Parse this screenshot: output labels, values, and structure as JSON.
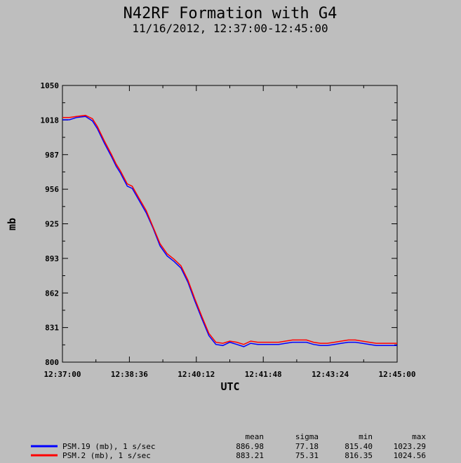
{
  "chart_data": {
    "type": "line",
    "title": "N42RF Formation with G4",
    "subtitle": "11/16/2012, 12:37:00-12:45:00",
    "xlabel": "UTC",
    "ylabel": "mb",
    "xlim_seconds": [
      0,
      480
    ],
    "ylim": [
      800,
      1050
    ],
    "xticks": [
      "12:37:00",
      "12:38:36",
      "12:40:12",
      "12:41:48",
      "12:43:24",
      "12:45:00"
    ],
    "yticks": [
      "1050",
      "1018",
      "987",
      "956",
      "925",
      "893",
      "862",
      "831",
      "800"
    ],
    "grid": false,
    "stats_headers": [
      "mean",
      "sigma",
      "min",
      "max"
    ],
    "series": [
      {
        "name": "PSM.19 (mb), 1 s/sec",
        "color": "#0000ff",
        "stats": [
          "886.98",
          "77.18",
          "815.40",
          "1023.29"
        ],
        "x": [
          0,
          10,
          20,
          33,
          43,
          50,
          60,
          70,
          77,
          83,
          88,
          93,
          100,
          110,
          120,
          130,
          140,
          150,
          160,
          170,
          180,
          190,
          200,
          210,
          220,
          230,
          240,
          250,
          260,
          270,
          280,
          290,
          300,
          310,
          320,
          330,
          340,
          350,
          360,
          370,
          380,
          390,
          400,
          410,
          420,
          430,
          440,
          450,
          460,
          470,
          480
        ],
        "values": [
          1019,
          1019,
          1021,
          1022,
          1018,
          1011,
          998,
          986,
          977,
          971,
          965,
          959,
          957,
          946,
          935,
          921,
          905,
          896,
          891,
          885,
          872,
          855,
          839,
          824,
          816,
          815,
          818,
          816,
          814,
          817,
          816,
          816,
          816,
          816,
          817,
          818,
          818,
          818,
          816,
          815,
          815,
          816,
          817,
          818,
          818,
          817,
          816,
          815,
          815,
          815,
          815
        ]
      },
      {
        "name": "PSM.2 (mb), 1 s/sec",
        "color": "#ff0000",
        "stats": [
          "883.21",
          "75.31",
          "816.35",
          "1024.56"
        ],
        "x": [
          0,
          10,
          20,
          33,
          43,
          50,
          60,
          70,
          77,
          83,
          88,
          93,
          100,
          110,
          120,
          130,
          140,
          150,
          160,
          170,
          180,
          190,
          200,
          210,
          220,
          230,
          240,
          250,
          260,
          270,
          280,
          290,
          300,
          310,
          320,
          330,
          340,
          350,
          360,
          370,
          380,
          390,
          400,
          410,
          420,
          430,
          440,
          450,
          460,
          470,
          480
        ],
        "values": [
          1021,
          1021,
          1022,
          1023,
          1020,
          1013,
          1000,
          988,
          979,
          973,
          967,
          961,
          959,
          948,
          937,
          922,
          907,
          898,
          893,
          887,
          874,
          857,
          841,
          826,
          818,
          817,
          819,
          818,
          816,
          819,
          818,
          818,
          818,
          818,
          819,
          820,
          820,
          820,
          818,
          817,
          817,
          818,
          819,
          820,
          820,
          819,
          818,
          817,
          817,
          817,
          817
        ]
      }
    ]
  }
}
